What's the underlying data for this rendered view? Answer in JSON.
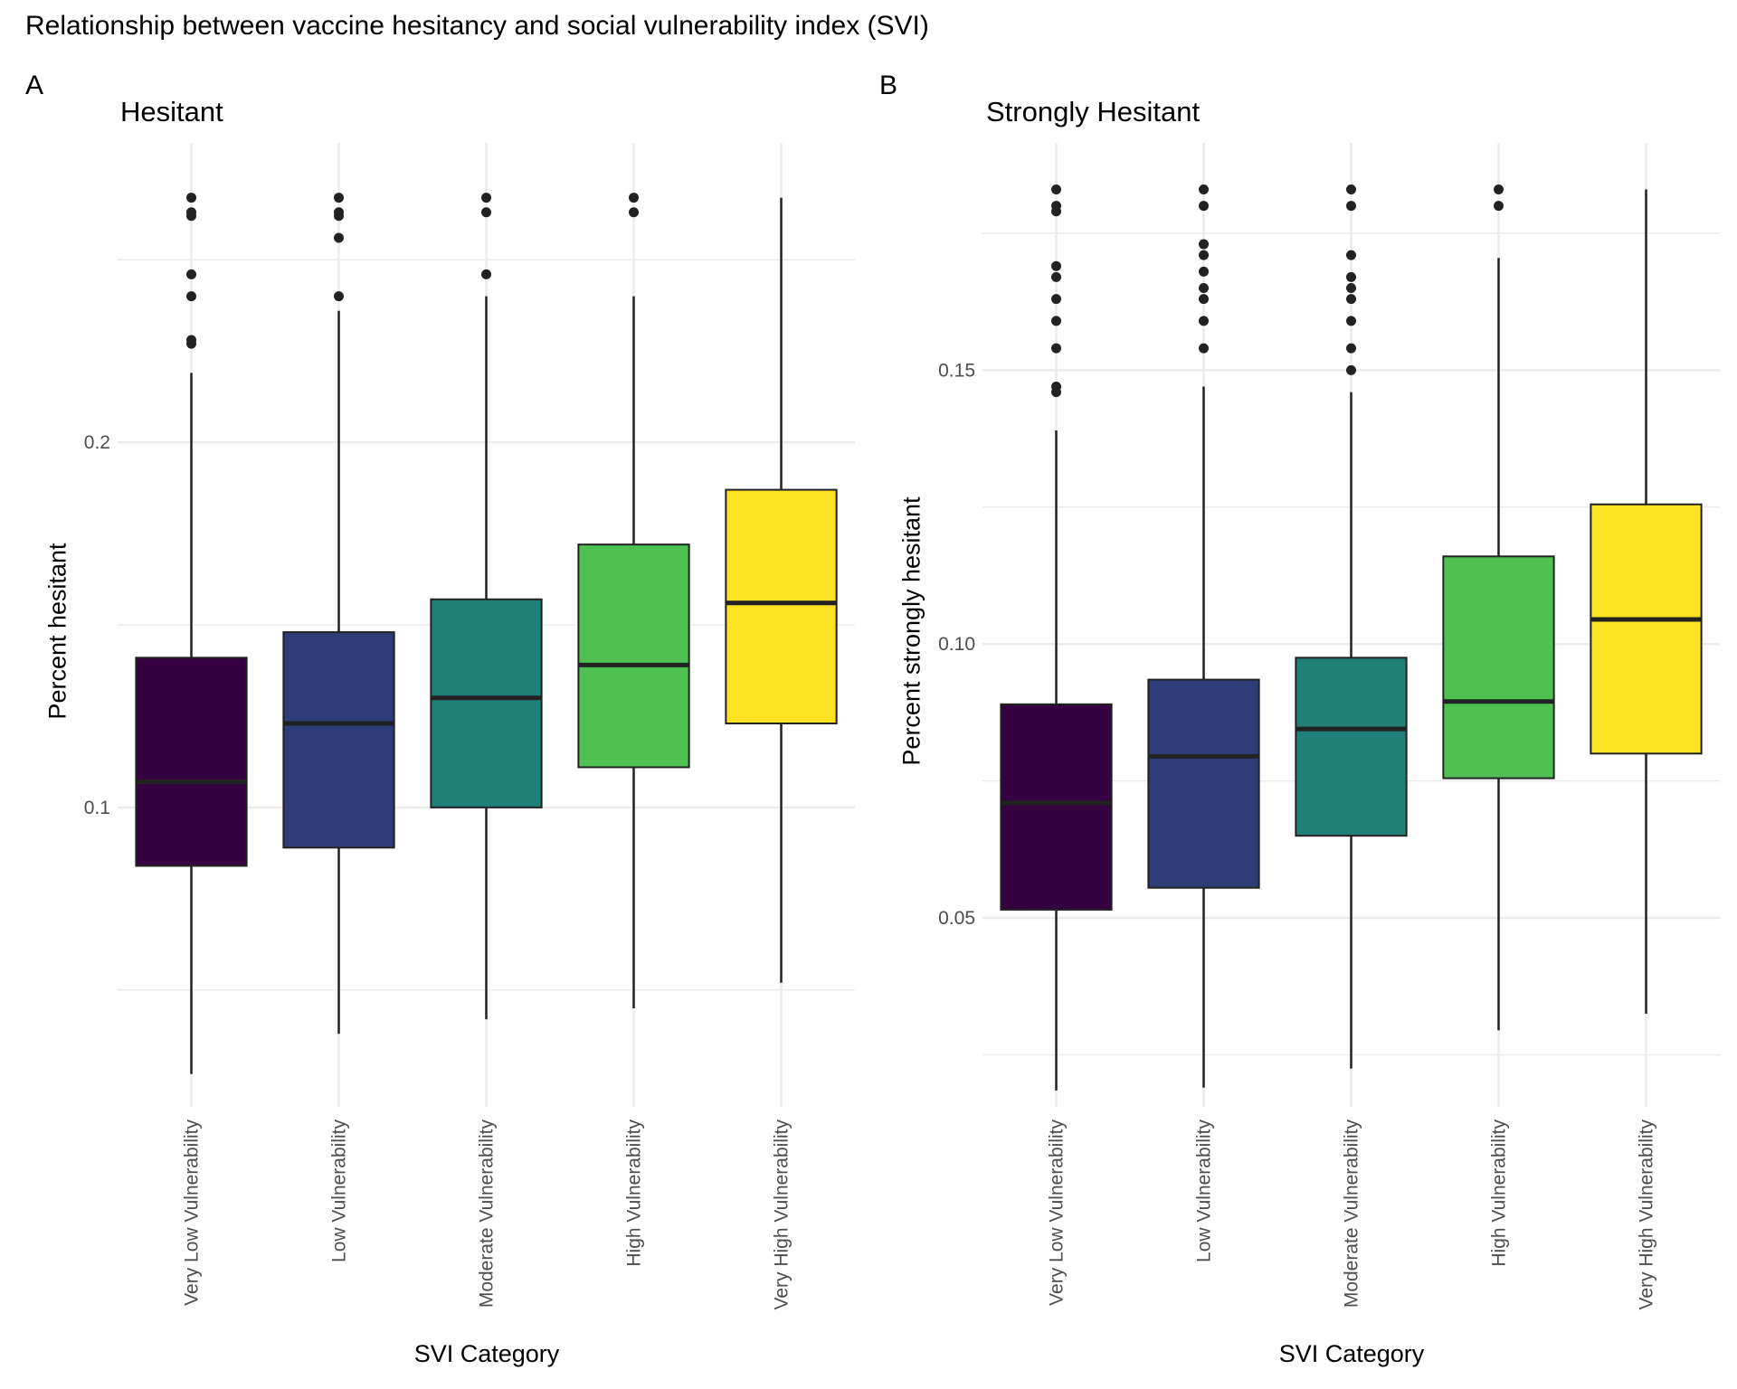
{
  "title": "Relationship between vaccine hesitancy and social vulnerability index (SVI)",
  "colors": {
    "Very Low Vulnerability": "#35003F",
    "Low Vulnerability": "#2E3D77",
    "Moderate Vulnerability": "#1F7F79",
    "High Vulnerability": "#4FC153",
    "Very High Vulnerability": "#FCE322",
    "grid": "#EBEBEB",
    "line": "#222222"
  },
  "chart_data": [
    {
      "type": "box",
      "tag": "A",
      "title": "Hesitant",
      "xlabel": "SVI Category",
      "ylabel": "Percent hesitant",
      "categories": [
        "Very Low Vulnerability",
        "Low Vulnerability",
        "Moderate Vulnerability",
        "High Vulnerability",
        "Very High Vulnerability"
      ],
      "ylim": [
        0.018,
        0.282
      ],
      "yticks": [
        0.1,
        0.2
      ],
      "ytick_labels": [
        "0.1",
        "0.2"
      ],
      "minor_yticks": [
        0.05,
        0.15,
        0.25
      ],
      "grid": true,
      "boxes": [
        {
          "category": "Very Low Vulnerability",
          "whisker_low": 0.027,
          "q1": 0.084,
          "median": 0.107,
          "q3": 0.141,
          "whisker_high": 0.219,
          "outliers": [
            0.267,
            0.263,
            0.262,
            0.246,
            0.24,
            0.228,
            0.227
          ]
        },
        {
          "category": "Low Vulnerability",
          "whisker_low": 0.038,
          "q1": 0.089,
          "median": 0.123,
          "q3": 0.148,
          "whisker_high": 0.236,
          "outliers": [
            0.267,
            0.263,
            0.262,
            0.256,
            0.24
          ]
        },
        {
          "category": "Moderate Vulnerability",
          "whisker_low": 0.042,
          "q1": 0.1,
          "median": 0.13,
          "q3": 0.157,
          "whisker_high": 0.24,
          "outliers": [
            0.267,
            0.263,
            0.246
          ]
        },
        {
          "category": "High Vulnerability",
          "whisker_low": 0.045,
          "q1": 0.111,
          "median": 0.139,
          "q3": 0.172,
          "whisker_high": 0.24,
          "outliers": [
            0.267,
            0.263
          ]
        },
        {
          "category": "Very High Vulnerability",
          "whisker_low": 0.052,
          "q1": 0.123,
          "median": 0.156,
          "q3": 0.187,
          "whisker_high": 0.267,
          "outliers": []
        }
      ]
    },
    {
      "type": "box",
      "tag": "B",
      "title": "Strongly Hesitant",
      "xlabel": "SVI Category",
      "ylabel": "Percent strongly hesitant",
      "categories": [
        "Very Low Vulnerability",
        "Low Vulnerability",
        "Moderate Vulnerability",
        "High Vulnerability",
        "Very High Vulnerability"
      ],
      "ylim": [
        0.0155,
        0.1915
      ],
      "yticks": [
        0.05,
        0.1,
        0.15
      ],
      "ytick_labels": [
        "0.05",
        "0.10",
        "0.15"
      ],
      "minor_yticks": [
        0.025,
        0.075,
        0.125,
        0.175
      ],
      "grid": true,
      "boxes": [
        {
          "category": "Very Low Vulnerability",
          "whisker_low": 0.0185,
          "q1": 0.0515,
          "median": 0.071,
          "q3": 0.089,
          "whisker_high": 0.139,
          "outliers": [
            0.183,
            0.18,
            0.179,
            0.169,
            0.167,
            0.163,
            0.159,
            0.154,
            0.147,
            0.146
          ]
        },
        {
          "category": "Low Vulnerability",
          "whisker_low": 0.019,
          "q1": 0.0555,
          "median": 0.0795,
          "q3": 0.0935,
          "whisker_high": 0.147,
          "outliers": [
            0.183,
            0.18,
            0.173,
            0.171,
            0.168,
            0.165,
            0.163,
            0.159,
            0.154
          ]
        },
        {
          "category": "Moderate Vulnerability",
          "whisker_low": 0.0225,
          "q1": 0.065,
          "median": 0.0845,
          "q3": 0.0975,
          "whisker_high": 0.146,
          "outliers": [
            0.183,
            0.18,
            0.171,
            0.167,
            0.165,
            0.163,
            0.159,
            0.154,
            0.15
          ]
        },
        {
          "category": "High Vulnerability",
          "whisker_low": 0.0295,
          "q1": 0.0755,
          "median": 0.0895,
          "q3": 0.116,
          "whisker_high": 0.1705,
          "outliers": [
            0.183,
            0.18
          ]
        },
        {
          "category": "Very High Vulnerability",
          "whisker_low": 0.0325,
          "q1": 0.08,
          "median": 0.1045,
          "q3": 0.1255,
          "whisker_high": 0.183,
          "outliers": []
        }
      ]
    }
  ]
}
